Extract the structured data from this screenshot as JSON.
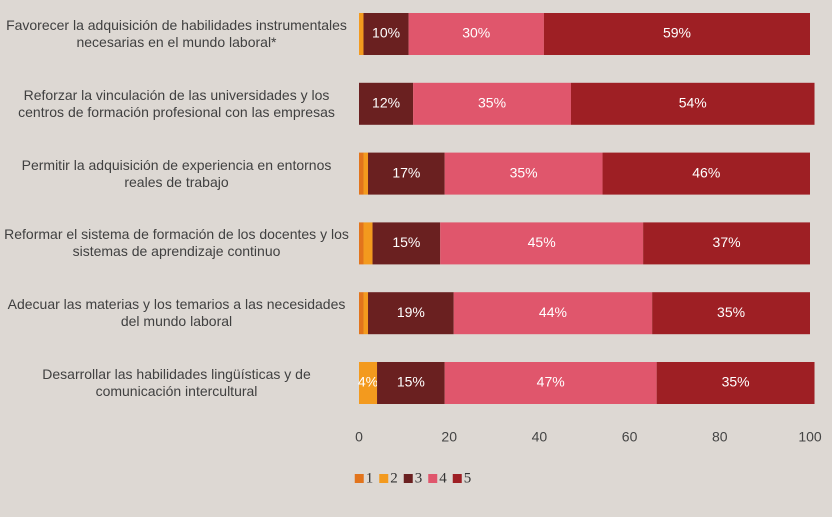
{
  "chart_data": {
    "type": "stacked_bar_horizontal",
    "categories": [
      "Favorecer la adquisición de habilidades instrumentales necesarias en el mundo laboral*",
      "Reforzar la vinculación de las universidades y los centros de formación profesional con las empresas",
      "Permitir la adquisición de experiencia en entornos reales de trabajo",
      "Reformar el sistema de formación de los docentes y los sistemas de aprendizaje continuo",
      "Adecuar las materias y los temarios a las necesidades del mundo laboral",
      "Desarrollar las habilidades lingüísticas y de comunicación intercultural"
    ],
    "series": [
      {
        "name": "1",
        "color": "#e2741c",
        "values": [
          0,
          0,
          1,
          1,
          1,
          0
        ],
        "value_labels": [
          null,
          null,
          null,
          null,
          null,
          null
        ]
      },
      {
        "name": "2",
        "color": "#f39a1e",
        "values": [
          1,
          0,
          1,
          2,
          1,
          4
        ],
        "value_labels": [
          null,
          null,
          null,
          null,
          null,
          "4%"
        ]
      },
      {
        "name": "3",
        "color": "#6a2020",
        "values": [
          10,
          12,
          17,
          15,
          19,
          15
        ],
        "value_labels": [
          "10%",
          "12%",
          "17%",
          "15%",
          "19%",
          "15%"
        ]
      },
      {
        "name": "4",
        "color": "#e0566c",
        "values": [
          30,
          35,
          35,
          45,
          44,
          47
        ],
        "value_labels": [
          "30%",
          "35%",
          "35%",
          "45%",
          "44%",
          "47%"
        ]
      },
      {
        "name": "5",
        "color": "#9e1f24",
        "values": [
          59,
          54,
          46,
          37,
          35,
          35
        ],
        "value_labels": [
          "59%",
          "54%",
          "46%",
          "37%",
          "35%",
          "35%"
        ]
      }
    ],
    "xlim": [
      0,
      100
    ],
    "xticks": [
      0,
      20,
      40,
      60,
      80,
      100
    ],
    "grid": false,
    "legend": "bottom"
  }
}
